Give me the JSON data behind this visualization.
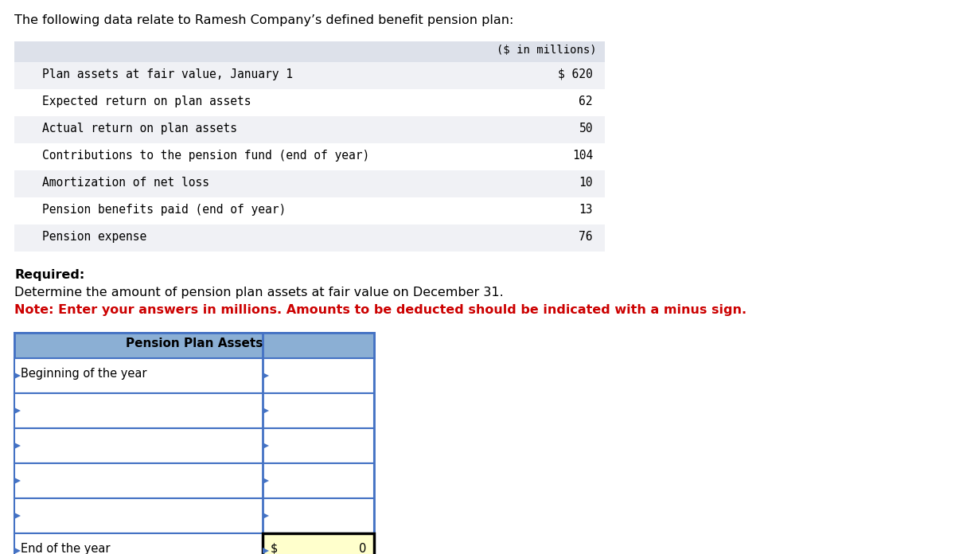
{
  "title": "The following data relate to Ramesh Company’s defined benefit pension plan:",
  "data_table_header": "($ in millions)",
  "data_rows": [
    [
      "Plan assets at fair value, January 1",
      "$ 620"
    ],
    [
      "Expected return on plan assets",
      "62"
    ],
    [
      "Actual return on plan assets",
      "50"
    ],
    [
      "Contributions to the pension fund (end of year)",
      "104"
    ],
    [
      "Amortization of net loss",
      "10"
    ],
    [
      "Pension benefits paid (end of year)",
      "13"
    ],
    [
      "Pension expense",
      "76"
    ]
  ],
  "required_label": "Required:",
  "determine_text": "Determine the amount of pension plan assets at fair value on December 31.",
  "note_text": "Note: Enter your answers in millions. Amounts to be deducted should be indicated with a minus sign.",
  "pension_table_title": "Pension Plan Assets",
  "pension_rows": [
    "Beginning of the year",
    "",
    "",
    "",
    "",
    "End of the year"
  ],
  "end_of_year_dollar": "$",
  "end_of_year_value": "0",
  "bg_color": "#ffffff",
  "data_header_bg": "#dde1ea",
  "data_row_odd_bg": "#f0f1f5",
  "data_row_even_bg": "#ffffff",
  "pension_header_bg": "#8bafd4",
  "pension_border_color": "#4472c4",
  "pension_end_cell_bg": "#ffffcc",
  "note_color": "#cc0000",
  "mono_font": "DejaVu Sans Mono",
  "sans_font": "DejaVu Sans"
}
